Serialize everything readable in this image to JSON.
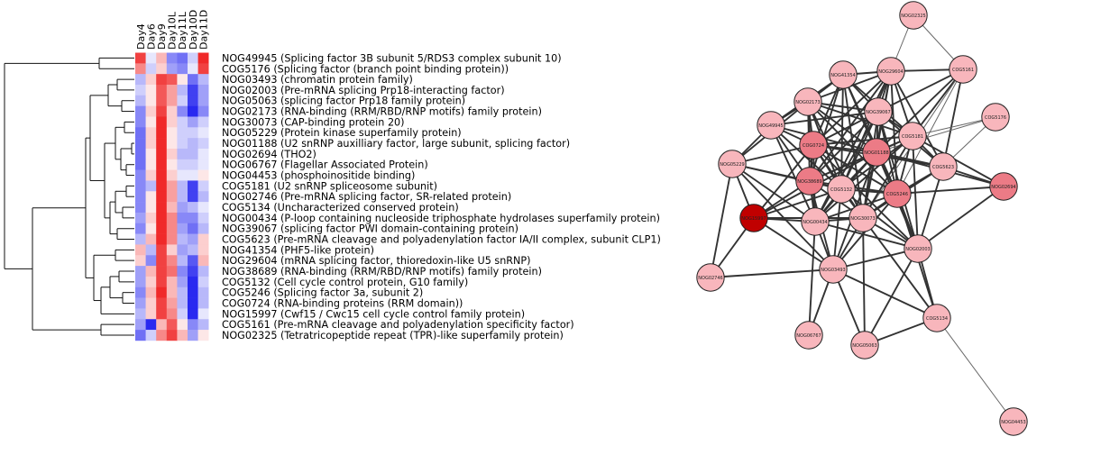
{
  "heatmap": {
    "columns": [
      "Day4",
      "Day6",
      "Day9",
      "Day10L",
      "Day11L",
      "Day10D",
      "Day11D"
    ],
    "rows": [
      "NOG49945 (Splicing factor 3B subunit 5/RDS3 complex subunit 10)",
      "COG5176 (Splicing factor  (branch point binding protein))",
      "NOG03493 (chromatin protein family)",
      "NOG02003 (Pre-mRNA splicing Prp18-interacting factor)",
      "NOG05063 (splicing factor Prp18 family protein)",
      "NOG02173 (RNA-binding  (RRM/RBD/RNP motifs) family protein)",
      "NOG30073 (CAP-binding protein 20)",
      "NOG05229 (Protein kinase superfamily protein)",
      "NOG01188 (U2 snRNP auxilliary factor, large subunit, splicing factor)",
      "NOG02694 (THO2)",
      "NOG06767 (Flagellar Associated Protein)",
      "NOG04453 (phosphoinositide binding)",
      "COG5181 (U2 snRNP spliceosome subunit)",
      "NOG02746 (Pre-mRNA splicing factor, SR-related protein)",
      "COG5134 (Uncharacterized conserved protein)",
      "NOG00434 (P-loop containing nucleoside triphosphate hydrolases superfamily protein)",
      "NOG39067 (splicing factor PWI domain-containing protein)",
      "COG5623 (Pre-mRNA cleavage and polyadenylation factor IA/II complex, subunit CLP1)",
      "NOG41354 (PHF5-like protein)",
      "NOG29604 (mRNA splicing factor, thioredoxin-like U5 snRNP)",
      "NOG38689 (RNA-binding  (RRM/RBD/RNP motifs) family protein)",
      "COG5132 (Cell cycle control protein, G10 family)",
      "COG5246 (Splicing factor 3a, subunit 2)",
      "COG0724 (RNA-binding proteins  (RRM domain))",
      "NOG15997 (Cwf15 / Cwc15 cell cycle control family protein)",
      "COG5161 (Pre-mRNA cleavage and polyadenylation specificity factor)",
      "NOG02325 (Tetratricopeptide repeat  (TPR)-like superfamily protein)"
    ],
    "values": [
      [
        0.8,
        -0.1,
        0.3,
        -0.5,
        -0.6,
        -0.2,
        0.9
      ],
      [
        0.5,
        -0.2,
        0.2,
        -0.4,
        -0.5,
        -0.1,
        0.8
      ],
      [
        -0.3,
        0.2,
        0.8,
        0.7,
        0.1,
        -0.6,
        -0.3
      ],
      [
        -0.2,
        0.1,
        0.7,
        0.4,
        -0.3,
        -0.8,
        -0.4
      ],
      [
        -0.3,
        0.1,
        0.7,
        0.4,
        -0.2,
        -0.8,
        -0.4
      ],
      [
        -0.5,
        0.2,
        0.8,
        0.2,
        -0.5,
        -0.9,
        -0.5
      ],
      [
        -0.5,
        0.1,
        0.9,
        0.2,
        -0.2,
        -0.4,
        -0.2
      ],
      [
        -0.6,
        0.2,
        0.9,
        0.1,
        -0.2,
        -0.2,
        -0.1
      ],
      [
        -0.6,
        0.2,
        0.9,
        0.1,
        -0.2,
        -0.3,
        -0.2
      ],
      [
        -0.6,
        0.1,
        0.9,
        0.2,
        -0.3,
        -0.3,
        -0.1
      ],
      [
        -0.6,
        0.1,
        0.9,
        0.1,
        -0.2,
        -0.2,
        -0.1
      ],
      [
        -0.5,
        0.2,
        0.9,
        0.2,
        -0.1,
        -0.1,
        0.1
      ],
      [
        -0.5,
        -0.3,
        0.9,
        0.4,
        -0.3,
        -0.8,
        -0.2
      ],
      [
        -0.5,
        0.1,
        0.9,
        0.4,
        -0.3,
        -0.8,
        -0.3
      ],
      [
        -0.5,
        0.1,
        0.9,
        0.3,
        -0.4,
        -0.3,
        -0.1
      ],
      [
        -0.4,
        0.2,
        0.9,
        0.5,
        -0.5,
        -0.5,
        -0.2
      ],
      [
        -0.5,
        0.1,
        0.9,
        0.5,
        -0.4,
        -0.6,
        -0.3
      ],
      [
        -0.3,
        0.3,
        0.9,
        0.5,
        -0.3,
        -0.4,
        0.2
      ],
      [
        0.3,
        -0.3,
        0.8,
        0.2,
        -0.4,
        -0.3,
        0.2
      ],
      [
        0.2,
        -0.5,
        0.8,
        0.5,
        -0.3,
        -0.7,
        0.3
      ],
      [
        -0.4,
        0.3,
        0.8,
        0.6,
        -0.5,
        -0.8,
        -0.3
      ],
      [
        -0.4,
        0.2,
        0.8,
        0.3,
        -0.4,
        -0.9,
        -0.2
      ],
      [
        -0.5,
        0.3,
        0.9,
        0.3,
        -0.3,
        -0.9,
        -0.3
      ],
      [
        -0.4,
        0.2,
        0.8,
        0.4,
        -0.3,
        -0.9,
        -0.3
      ],
      [
        -0.3,
        0.2,
        0.8,
        0.5,
        -0.2,
        -0.9,
        -0.1
      ],
      [
        -0.4,
        -0.9,
        0.3,
        0.7,
        0.1,
        -0.5,
        -0.3
      ],
      [
        -0.6,
        -0.2,
        0.5,
        0.8,
        0.3,
        -0.4,
        0.1
      ]
    ],
    "colors": {
      "high": "#ee1111",
      "mid": "#ffffff",
      "low": "#1111ee"
    }
  },
  "network": {
    "node_colors": {
      "light": "#f8b6bc",
      "medium": "#ec7b86",
      "dark": "#c00000",
      "stroke": "#222222"
    },
    "nodes": [
      {
        "id": "NOG02325",
        "level": "light"
      },
      {
        "id": "NOG29604",
        "level": "light"
      },
      {
        "id": "COG5161",
        "level": "light"
      },
      {
        "id": "NOG41354",
        "level": "light"
      },
      {
        "id": "NOG02173",
        "level": "light"
      },
      {
        "id": "NOG39067",
        "level": "light"
      },
      {
        "id": "COG5176",
        "level": "light"
      },
      {
        "id": "NOG49945",
        "level": "light"
      },
      {
        "id": "COG0724",
        "level": "medium"
      },
      {
        "id": "NOG01188",
        "level": "medium"
      },
      {
        "id": "COG5181",
        "level": "light"
      },
      {
        "id": "NOG05229",
        "level": "light"
      },
      {
        "id": "COG5623",
        "level": "light"
      },
      {
        "id": "NOG02694",
        "level": "medium"
      },
      {
        "id": "NOG38689",
        "level": "medium"
      },
      {
        "id": "COG5132",
        "level": "light"
      },
      {
        "id": "COG5246",
        "level": "medium"
      },
      {
        "id": "NOG15997",
        "level": "dark"
      },
      {
        "id": "NOG00434",
        "level": "light"
      },
      {
        "id": "NOG30073",
        "level": "light"
      },
      {
        "id": "NOG02003",
        "level": "light"
      },
      {
        "id": "NOG03493",
        "level": "light"
      },
      {
        "id": "NOG02746",
        "level": "light"
      },
      {
        "id": "COG5134",
        "level": "light"
      },
      {
        "id": "NOG06767",
        "level": "light"
      },
      {
        "id": "NOG05063",
        "level": "light"
      },
      {
        "id": "NOG04453",
        "level": "light"
      }
    ]
  }
}
